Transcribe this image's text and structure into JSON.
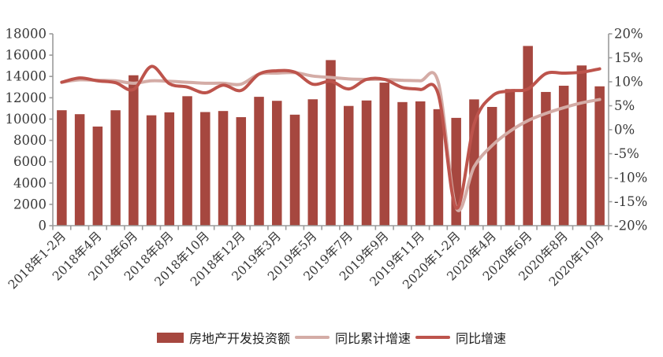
{
  "chart_data": {
    "type": "bar",
    "combo": "bar + 2 smooth lines",
    "title": "",
    "xlabel": "",
    "ylabel": "",
    "grid": false,
    "legend_position": "bottom",
    "categories": [
      "2018年1-2月",
      "2018年3月",
      "2018年4月",
      "2018年5月",
      "2018年6月",
      "2018年7月",
      "2018年8月",
      "2018年9月",
      "2018年10月",
      "2018年11月",
      "2018年12月",
      "2019年1-2月",
      "2019年3月",
      "2019年4月",
      "2019年5月",
      "2019年6月",
      "2019年7月",
      "2019年8月",
      "2019年9月",
      "2019年10月",
      "2019年11月",
      "2019年12月",
      "2020年1-2月",
      "2020年3月",
      "2020年4月",
      "2020年5月",
      "2020年6月",
      "2020年7月",
      "2020年8月",
      "2020年9月",
      "2020年10月"
    ],
    "x_label_every": 2,
    "visible_x_labels": [
      "2018年1-2月",
      "2018年4月",
      "2018年6月",
      "2018年8月",
      "2018年10月",
      "2018年12月",
      "2019年3月",
      "2019年5月",
      "2019年7月",
      "2019年9月",
      "2019年11月",
      "2020年1-2月",
      "2020年4月",
      "2020年6月",
      "2020年8月",
      "2020年10月"
    ],
    "left_axis": {
      "min": 0,
      "max": 18000,
      "step": 2000,
      "tick_labels": [
        "0",
        "2000",
        "4000",
        "6000",
        "8000",
        "10000",
        "12000",
        "14000",
        "16000",
        "18000"
      ]
    },
    "right_axis": {
      "min": -20,
      "max": 20,
      "step": 5,
      "suffix": "%",
      "tick_labels": [
        "-20%",
        "-15%",
        "-10%",
        "-5%",
        "0%",
        "5%",
        "10%",
        "15%",
        "20%"
      ]
    },
    "series": [
      {
        "name": "房地产开发投资额",
        "type": "bar",
        "axis": "left",
        "color": "#A6473F",
        "values": [
          10831,
          10460,
          9301,
          10828,
          14111,
          10355,
          10633,
          12146,
          10660,
          10758,
          10181,
          12090,
          11713,
          10414,
          11858,
          15534,
          11234,
          11746,
          13419,
          11595,
          11662,
          10929,
          10115,
          11848,
          11140,
          12817,
          16860,
          12545,
          13129,
          15030,
          13072
        ]
      },
      {
        "name": "同比累计增速",
        "type": "line",
        "axis": "right",
        "color": "#D4ACA6",
        "values": [
          9.9,
          10.4,
          10.3,
          10.2,
          9.7,
          10.2,
          10.1,
          9.9,
          9.7,
          9.7,
          9.5,
          11.6,
          11.8,
          11.9,
          11.2,
          10.9,
          10.6,
          10.5,
          10.5,
          10.3,
          10.2,
          9.9,
          -16.3,
          -7.7,
          -3.3,
          -0.3,
          1.9,
          3.4,
          4.6,
          5.6,
          6.3
        ]
      },
      {
        "name": "同比增速",
        "type": "line",
        "axis": "right",
        "color": "#BD544C",
        "values": [
          9.9,
          10.8,
          10.2,
          9.8,
          8.4,
          13.2,
          9.6,
          8.9,
          7.7,
          9.3,
          8.2,
          11.6,
          12.3,
          12.0,
          9.5,
          10.1,
          8.5,
          10.5,
          10.5,
          8.8,
          8.4,
          7.4,
          -16.3,
          1.2,
          7.0,
          8.1,
          8.5,
          11.7,
          11.8,
          12.0,
          12.7
        ]
      }
    ]
  },
  "colors": {
    "background": "#FFFFFF",
    "axis": "#9B9B9B",
    "tick_text": "#383838",
    "legend_text": "#1F1F1F"
  }
}
